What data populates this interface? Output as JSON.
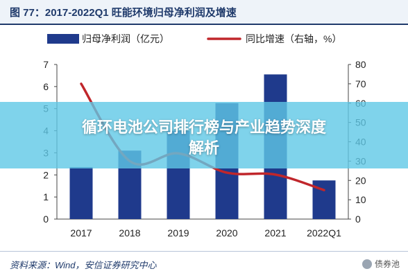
{
  "header": {
    "title": "图 77：2017-2022Q1 旺能环境归母净利润及增速"
  },
  "overlay": {
    "line1": "循环电池公司排行榜与产业趋势深度",
    "line2": "解析"
  },
  "footer": {
    "source": "资料来源：Wind，安信证券研究中心",
    "watermark": "债券池"
  },
  "colors": {
    "bar": "#1f3a8c",
    "line": "#c0262b",
    "header": "#1f3a6b"
  },
  "chart_data": {
    "type": "bar",
    "title": "",
    "categories": [
      "2017",
      "2018",
      "2019",
      "2020",
      "2021",
      "2022Q1"
    ],
    "series": [
      {
        "name": "归母净利润（亿元）",
        "type": "bar",
        "axis": "left",
        "values": [
          2.35,
          3.1,
          4.0,
          5.25,
          6.55,
          1.75
        ]
      },
      {
        "name": "同比增速（右轴，%）",
        "type": "line",
        "axis": "right",
        "values": [
          70,
          30,
          34,
          24,
          23,
          15
        ]
      }
    ],
    "y_left": {
      "min": 0,
      "max": 7,
      "ticks": [
        0,
        1,
        2,
        3,
        4,
        5,
        6,
        7
      ]
    },
    "y_right": {
      "min": 0,
      "max": 80,
      "ticks": [
        0,
        10,
        20,
        30,
        40,
        50,
        60,
        70,
        80
      ]
    },
    "legend": "top",
    "grid": false
  }
}
